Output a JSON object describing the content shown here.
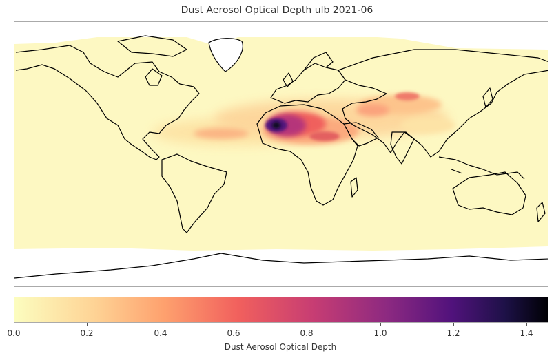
{
  "map": {
    "title": "Dust Aerosol Optical Depth ulb 2021-06",
    "colorbar_label": "Dust Aerosol Optical Depth",
    "colorbar_ticks": [
      "0.0",
      "0.2",
      "0.4",
      "0.6",
      "0.8",
      "1.0",
      "1.2",
      "1.4"
    ],
    "value_range": [
      0.0,
      1.46
    ],
    "colormap": "magma_r",
    "colors": {
      "low": "#fcf9bb",
      "mid_low": "#fdb57a",
      "mid": "#f0605d",
      "mid_high": "#b5367a",
      "high": "#51127c",
      "max": "#000004",
      "ocean_background": "#fdf9c4",
      "no_data": "#ffffff",
      "coastline": "#000000"
    },
    "plumes": [
      {
        "region": "Western Sahara / Mali",
        "value": 1.4
      },
      {
        "region": "Central Sahara",
        "value": 0.9
      },
      {
        "region": "Arabian Peninsula",
        "value": 0.5
      },
      {
        "region": "Taklamakan / Central Asia",
        "value": 0.45
      },
      {
        "region": "Tropical North Atlantic",
        "value": 0.3
      },
      {
        "region": "Indian subcontinent",
        "value": 0.35
      }
    ]
  }
}
